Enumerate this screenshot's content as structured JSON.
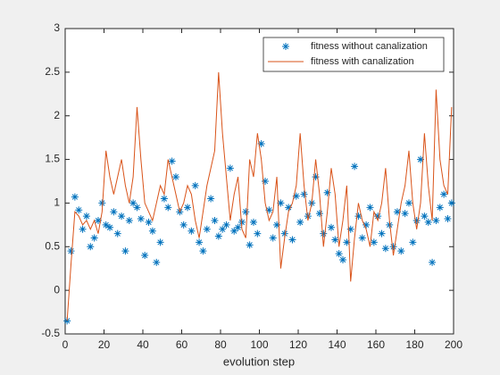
{
  "chart_data": {
    "type": "combo",
    "xlabel": "evolution step",
    "x": [
      1,
      3,
      5,
      7,
      9,
      11,
      13,
      15,
      17,
      19,
      21,
      23,
      25,
      27,
      29,
      31,
      33,
      35,
      37,
      39,
      41,
      43,
      45,
      47,
      49,
      51,
      53,
      55,
      57,
      59,
      61,
      63,
      65,
      67,
      69,
      71,
      73,
      75,
      77,
      79,
      81,
      83,
      85,
      87,
      89,
      91,
      93,
      95,
      97,
      99,
      101,
      103,
      105,
      107,
      109,
      111,
      113,
      115,
      117,
      119,
      121,
      123,
      125,
      127,
      129,
      131,
      133,
      135,
      137,
      139,
      141,
      143,
      145,
      147,
      149,
      151,
      153,
      155,
      157,
      159,
      161,
      163,
      165,
      167,
      169,
      171,
      173,
      175,
      177,
      179,
      181,
      183,
      185,
      187,
      189,
      191,
      193,
      195,
      197,
      199
    ],
    "series": [
      {
        "name": "fitness without canalization",
        "type": "scatter",
        "color": "#0072bd",
        "values": [
          -0.35,
          0.45,
          1.07,
          0.92,
          0.7,
          0.85,
          0.5,
          0.6,
          0.8,
          1.0,
          0.75,
          0.72,
          0.9,
          0.65,
          0.85,
          0.45,
          0.8,
          1.0,
          0.95,
          0.82,
          0.4,
          0.78,
          0.68,
          0.32,
          0.55,
          1.05,
          0.95,
          1.48,
          1.3,
          0.9,
          0.75,
          0.95,
          0.68,
          1.2,
          0.55,
          0.45,
          0.7,
          1.05,
          0.8,
          0.62,
          0.7,
          0.75,
          1.4,
          0.68,
          0.72,
          0.78,
          0.9,
          0.52,
          0.78,
          0.65,
          1.68,
          1.25,
          0.92,
          0.6,
          0.75,
          1.0,
          0.65,
          0.95,
          0.58,
          1.08,
          0.78,
          1.1,
          0.85,
          1.0,
          1.3,
          0.88,
          0.65,
          1.12,
          0.72,
          0.58,
          0.42,
          0.35,
          0.55,
          0.7,
          1.42,
          0.85,
          0.6,
          0.75,
          0.95,
          0.55,
          0.85,
          0.65,
          0.48,
          0.75,
          0.5,
          0.9,
          0.45,
          0.88,
          1.0,
          0.55,
          0.8,
          1.5,
          0.85,
          0.78,
          0.32,
          0.8,
          0.95,
          1.1,
          0.82,
          1.0
        ]
      },
      {
        "name": "fitness with canalization",
        "type": "line",
        "color": "#d95319",
        "values": [
          -0.35,
          0.3,
          0.9,
          0.85,
          0.75,
          0.8,
          0.7,
          0.8,
          0.65,
          0.9,
          1.6,
          1.3,
          1.1,
          1.3,
          1.5,
          1.2,
          1.0,
          1.3,
          2.1,
          1.5,
          1.0,
          0.9,
          0.8,
          1.0,
          1.2,
          1.1,
          1.5,
          1.3,
          1.1,
          0.9,
          1.0,
          1.2,
          1.1,
          0.8,
          0.6,
          0.9,
          1.2,
          1.4,
          1.6,
          2.5,
          1.8,
          1.3,
          0.8,
          1.1,
          1.3,
          0.7,
          0.6,
          1.5,
          1.3,
          1.8,
          1.5,
          1.0,
          0.8,
          0.9,
          1.3,
          0.25,
          0.6,
          0.9,
          1.0,
          1.2,
          1.8,
          1.2,
          0.8,
          1.0,
          1.5,
          1.1,
          0.5,
          0.9,
          1.4,
          1.1,
          0.5,
          0.8,
          1.2,
          0.1,
          0.6,
          1.0,
          0.8,
          0.7,
          0.5,
          0.9,
          0.8,
          1.0,
          1.4,
          0.8,
          0.4,
          0.7,
          1.0,
          1.2,
          1.6,
          1.0,
          0.7,
          1.0,
          1.8,
          1.2,
          0.8,
          2.3,
          1.5,
          1.2,
          1.1,
          2.1
        ]
      }
    ],
    "xlim": [
      0,
      200
    ],
    "xticks": [
      0,
      20,
      40,
      60,
      80,
      100,
      120,
      140,
      160,
      180,
      200
    ],
    "ylim": [
      -0.5,
      3
    ],
    "yticks": [
      -0.5,
      0,
      0.5,
      1,
      1.5,
      2,
      2.5,
      3
    ],
    "legend": "upper right",
    "grid": false
  }
}
